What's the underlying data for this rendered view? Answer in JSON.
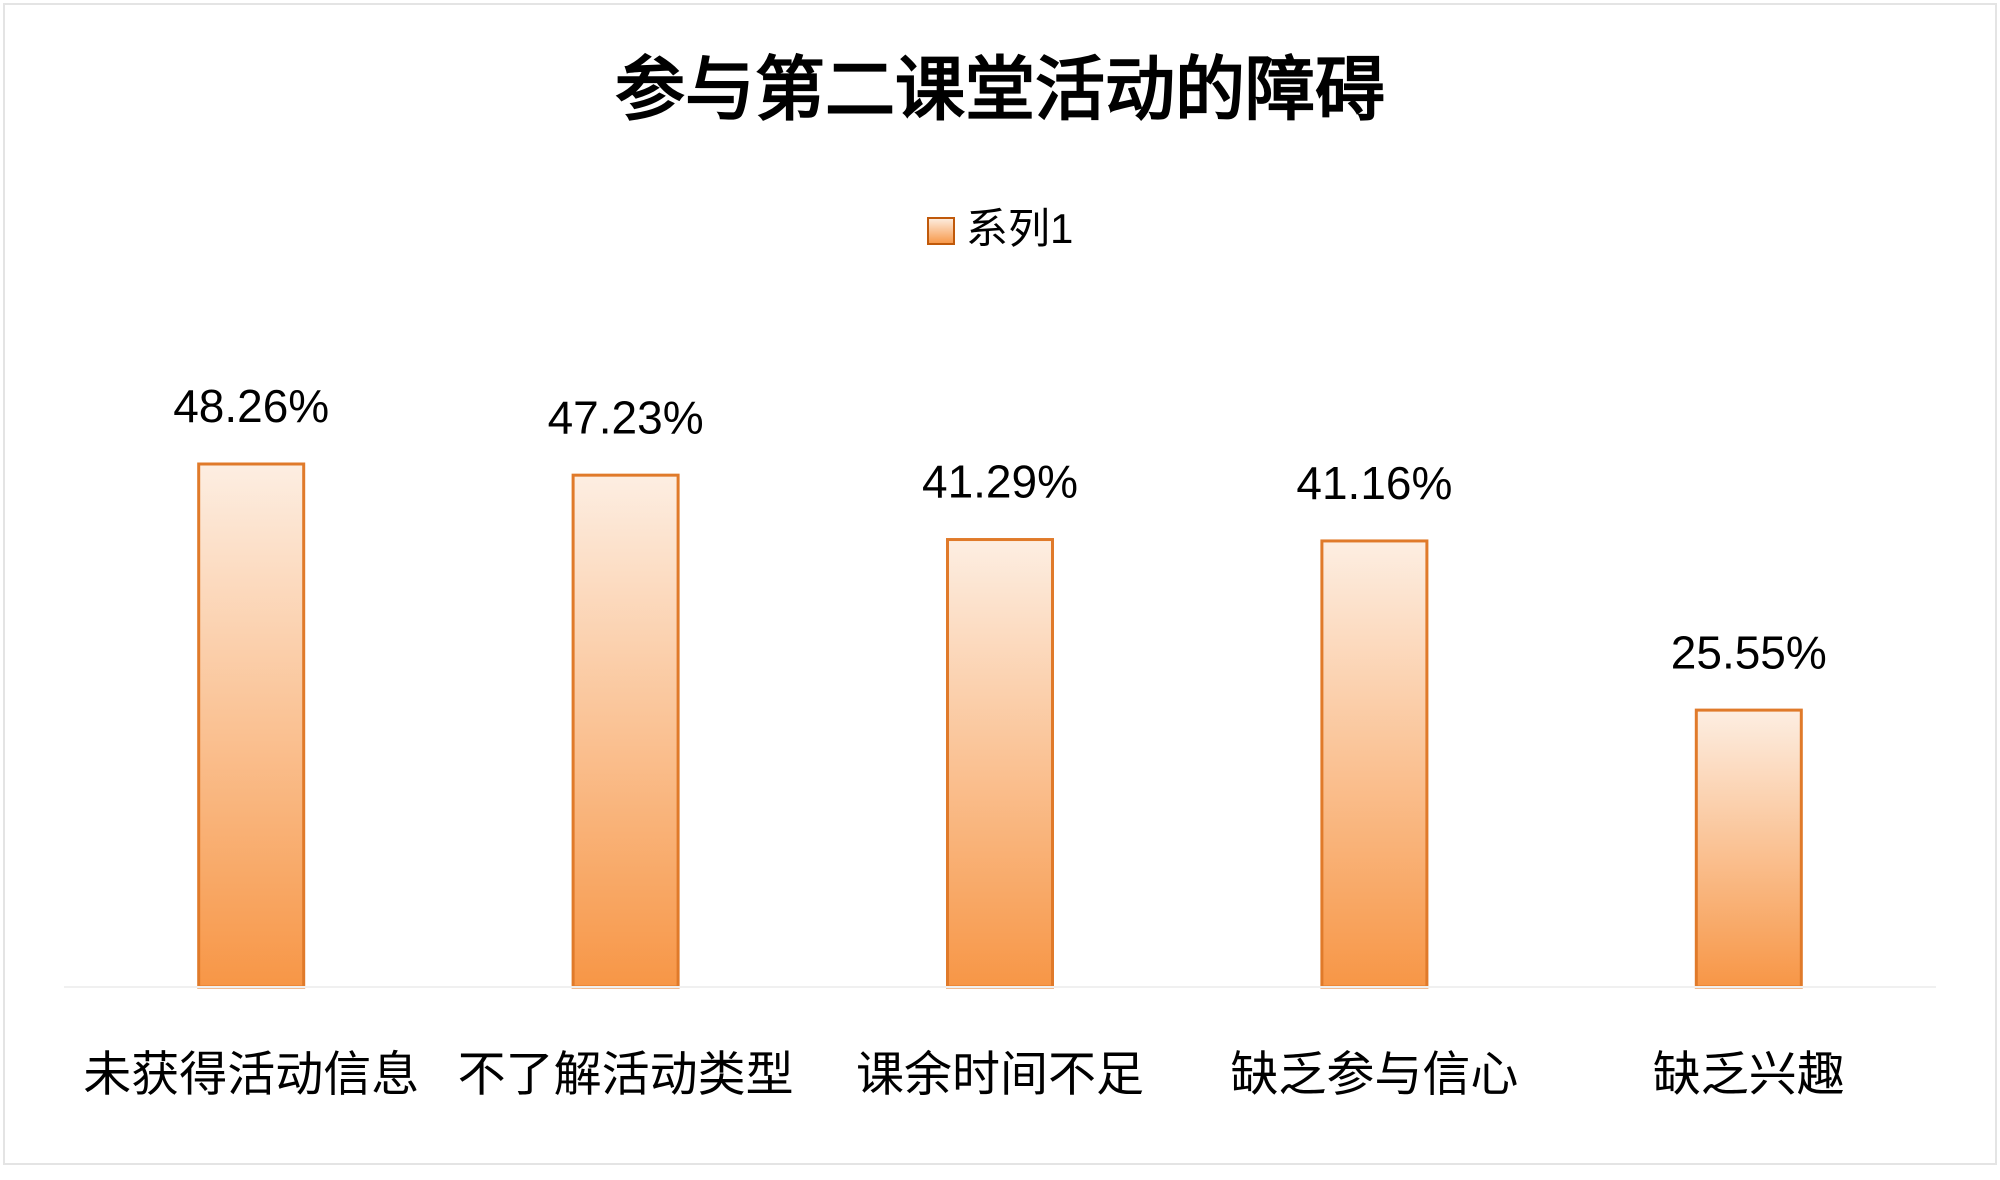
{
  "chart_data": {
    "type": "bar",
    "title": "参与第二课堂活动的障碍",
    "categories": [
      "未获得活动信息",
      "不了解活动类型",
      "课余时间不足",
      "缺乏参与信心",
      "缺乏兴趣"
    ],
    "series": [
      {
        "name": "系列1",
        "color": "#f79646",
        "values": [
          48.26,
          47.23,
          41.29,
          41.16,
          25.55
        ],
        "value_labels": [
          "48.26%",
          "47.23%",
          "41.29%",
          "41.16%",
          "25.55%"
        ]
      }
    ],
    "legend": "top",
    "grid": false
  }
}
